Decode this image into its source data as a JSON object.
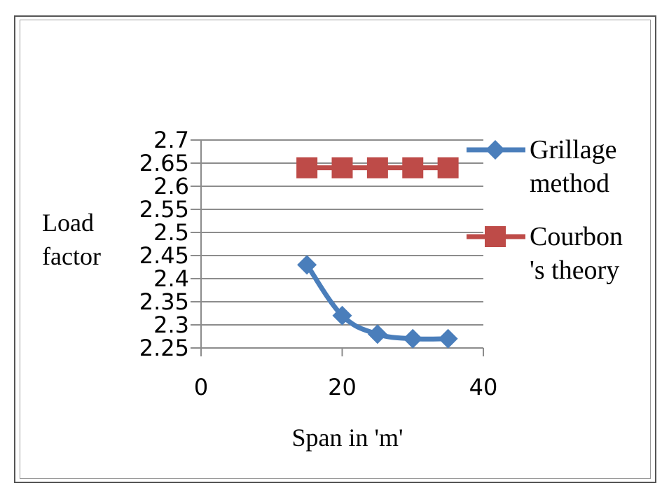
{
  "chart_data": {
    "type": "line",
    "title": "",
    "xlabel": "Span in 'm'",
    "ylabel_lines": [
      "Load",
      "factor"
    ],
    "xlim": [
      0,
      40
    ],
    "ylim": [
      2.25,
      2.7
    ],
    "x_ticks": [
      "0",
      "20",
      "40"
    ],
    "x_tick_values": [
      0,
      20,
      40
    ],
    "y_ticks": [
      "2.25",
      "2.3",
      "2.35",
      "2.4",
      "2.45",
      "2.5",
      "2.55",
      "2.6",
      "2.65",
      "2.7"
    ],
    "y_tick_values": [
      2.25,
      2.3,
      2.35,
      2.4,
      2.45,
      2.5,
      2.55,
      2.6,
      2.65,
      2.7
    ],
    "grid": true,
    "legend_position": "right",
    "series": [
      {
        "legend_lines": [
          "Grillage",
          "method"
        ],
        "color": "#4a7ebb",
        "marker": "diamond",
        "smooth": true,
        "x": [
          15,
          20,
          25,
          30,
          35
        ],
        "y": [
          2.43,
          2.32,
          2.28,
          2.27,
          2.27
        ]
      },
      {
        "legend_lines": [
          "Courbon",
          "'s theory"
        ],
        "color": "#be4b48",
        "marker": "square",
        "smooth": false,
        "x": [
          15,
          20,
          25,
          30,
          35
        ],
        "y": [
          2.64,
          2.64,
          2.64,
          2.64,
          2.64
        ]
      }
    ]
  }
}
